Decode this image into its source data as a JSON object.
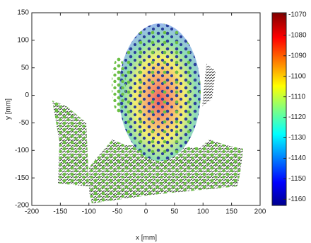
{
  "chart_data": {
    "type": "scatter",
    "x_label": "x [mm]",
    "y_label": "y [mm]",
    "xlim": [
      -200,
      200
    ],
    "xticks": [
      -200,
      -150,
      -100,
      -50,
      0,
      50,
      100,
      150,
      200
    ],
    "ylim": [
      -200,
      150
    ],
    "yticks": [
      -200,
      -150,
      -100,
      -50,
      0,
      50,
      100,
      150
    ],
    "colorbar": {
      "colormap": "jet",
      "clim": [
        -1163,
        -1069
      ],
      "ticks": [
        -1160,
        -1150,
        -1140,
        -1130,
        -1120,
        -1110,
        -1100,
        -1090,
        -1080,
        -1070
      ]
    }
  }
}
